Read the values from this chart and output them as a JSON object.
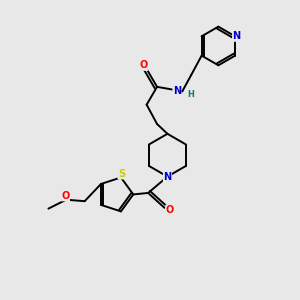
{
  "background_color": "#e8e8e8",
  "bond_color": "#000000",
  "atom_colors": {
    "N": "#0000cc",
    "O": "#ff0000",
    "S": "#cccc00",
    "H": "#008080",
    "C": "#000000"
  },
  "figsize": [
    3.0,
    3.0
  ],
  "dpi": 100,
  "xlim": [
    0,
    10
  ],
  "ylim": [
    0,
    10
  ]
}
